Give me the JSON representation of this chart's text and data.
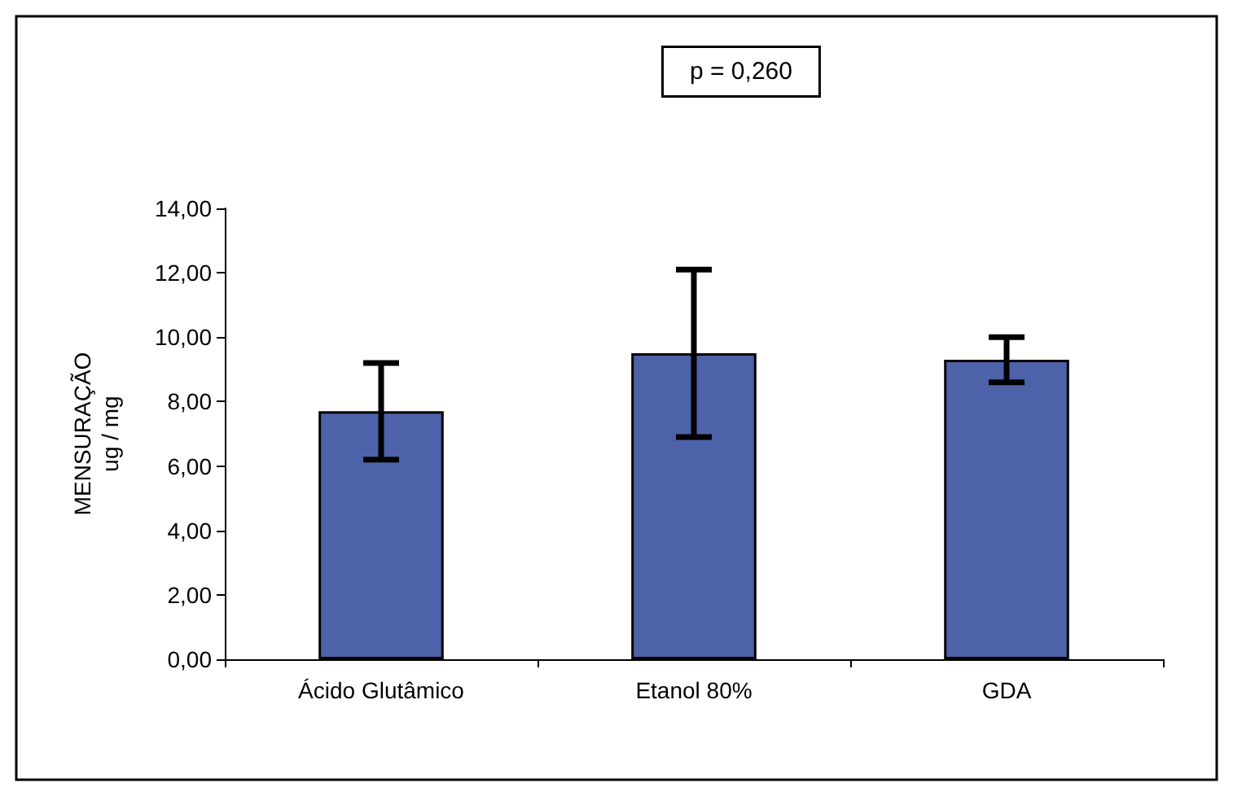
{
  "chart_data": {
    "type": "bar",
    "ylabel": "MENSURAÇÃO\nug / mg",
    "annotations": [
      "p = 0,260"
    ],
    "categories": [
      "Ácido Glutâmico",
      "Etanol 80%",
      "GDA"
    ],
    "values": [
      7.7,
      9.5,
      9.3
    ],
    "errors": [
      1.5,
      2.6,
      0.7
    ],
    "color": "#4d62a8",
    "ylim": [
      0,
      14
    ],
    "yticks": [
      {
        "value": 0,
        "label": "0,00"
      },
      {
        "value": 2,
        "label": "2,00"
      },
      {
        "value": 4,
        "label": "4,00"
      },
      {
        "value": 6,
        "label": "6,00"
      },
      {
        "value": 8,
        "label": "8,00"
      },
      {
        "value": 10,
        "label": "10,00"
      },
      {
        "value": 12,
        "label": "12,00"
      },
      {
        "value": 14,
        "label": "14,00"
      }
    ],
    "grid": false
  }
}
